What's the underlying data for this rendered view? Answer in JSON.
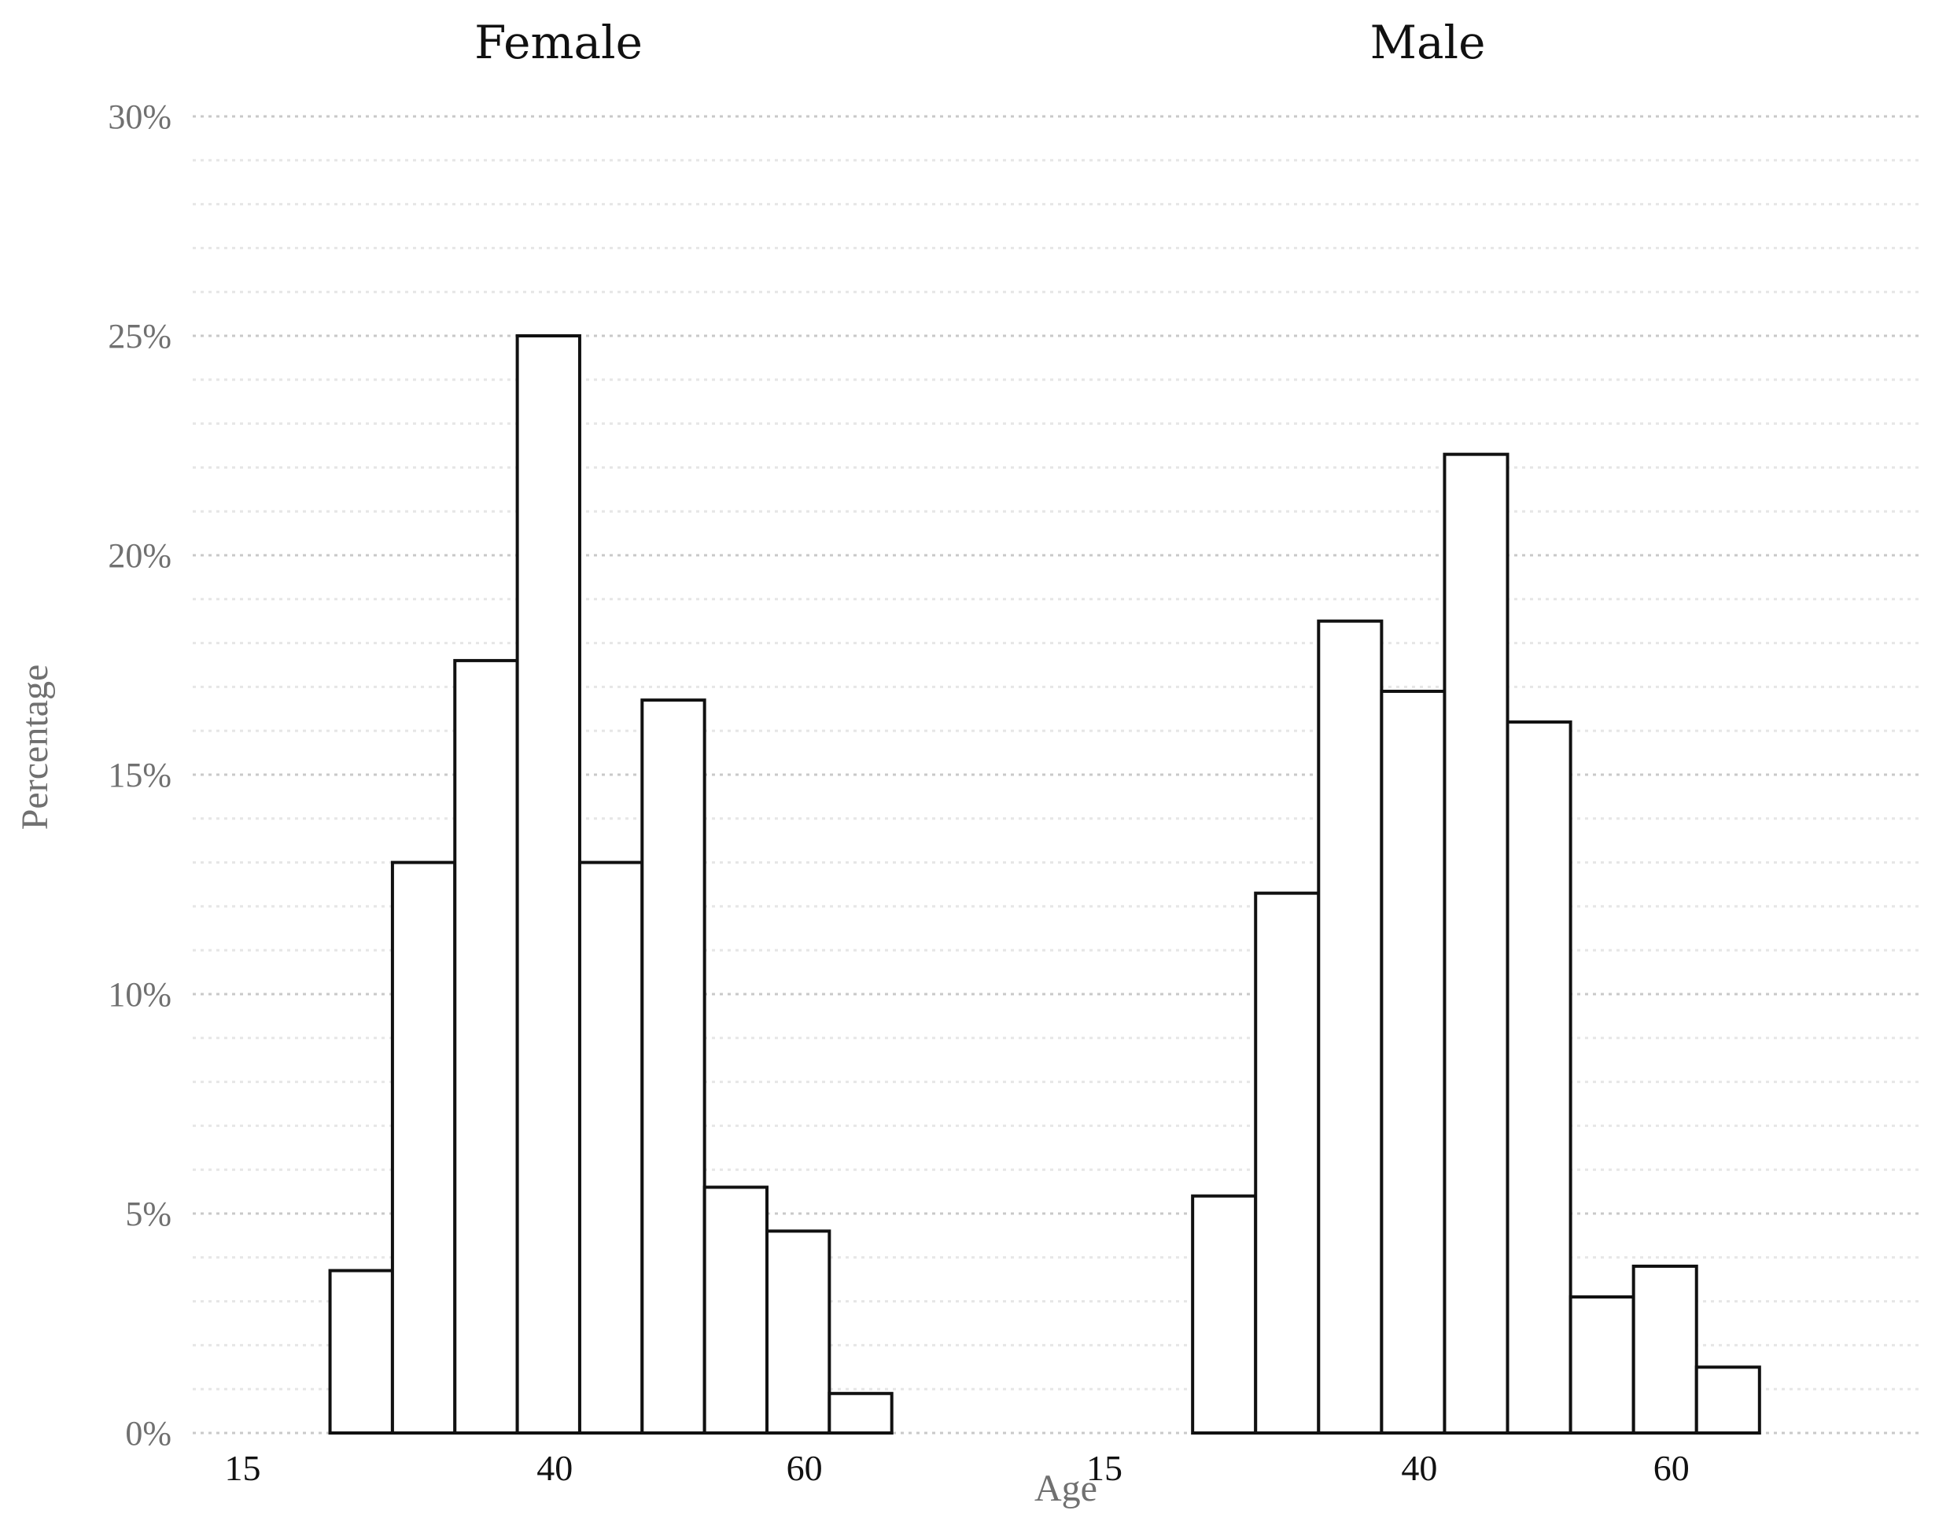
{
  "chart_data": {
    "type": "bar",
    "subtype": "histogram-faceted",
    "xlabel": "Age",
    "ylabel": "Percentage",
    "ylim": [
      0,
      30
    ],
    "y_ticks": [
      0,
      5,
      10,
      15,
      20,
      25,
      30
    ],
    "y_tick_labels": [
      "0%",
      "5%",
      "10%",
      "15%",
      "20%",
      "25%",
      "30%"
    ],
    "y_minor_step": 1,
    "grid": true,
    "xlim": [
      11,
      80
    ],
    "x_ticks": [
      15,
      40,
      60
    ],
    "x_tick_labels": [
      "15",
      "40",
      "60"
    ],
    "bin_width": 5,
    "facets": [
      {
        "title": "Female",
        "bins": [
          {
            "start": 22,
            "end": 27,
            "value": 3.7
          },
          {
            "start": 27,
            "end": 32,
            "value": 13.0
          },
          {
            "start": 32,
            "end": 37,
            "value": 17.6
          },
          {
            "start": 37,
            "end": 42,
            "value": 25.0
          },
          {
            "start": 42,
            "end": 47,
            "value": 13.0
          },
          {
            "start": 47,
            "end": 52,
            "value": 16.7
          },
          {
            "start": 52,
            "end": 57,
            "value": 5.6
          },
          {
            "start": 57,
            "end": 62,
            "value": 4.6
          },
          {
            "start": 62,
            "end": 67,
            "value": 0.9
          }
        ]
      },
      {
        "title": "Male",
        "bins": [
          {
            "start": 22,
            "end": 27,
            "value": 5.4
          },
          {
            "start": 27,
            "end": 32,
            "value": 12.3
          },
          {
            "start": 32,
            "end": 37,
            "value": 18.5
          },
          {
            "start": 37,
            "end": 42,
            "value": 16.9
          },
          {
            "start": 42,
            "end": 47,
            "value": 22.3
          },
          {
            "start": 47,
            "end": 52,
            "value": 16.2
          },
          {
            "start": 52,
            "end": 57,
            "value": 3.1
          },
          {
            "start": 57,
            "end": 62,
            "value": 3.8
          },
          {
            "start": 62,
            "end": 67,
            "value": 1.5
          }
        ]
      }
    ]
  }
}
